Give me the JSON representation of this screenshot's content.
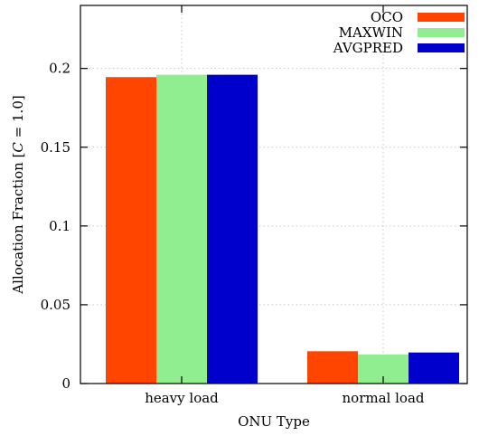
{
  "chart_data": {
    "type": "bar",
    "categories": [
      "heavy load",
      "normal load"
    ],
    "series": [
      {
        "name": "OCO",
        "color": "#ff4500",
        "values": [
          0.1945,
          0.0205
        ]
      },
      {
        "name": "MAXWIN",
        "color": "#90ee90",
        "values": [
          0.196,
          0.0185
        ]
      },
      {
        "name": "AVGPRED",
        "color": "#0000cd",
        "values": [
          0.196,
          0.0197
        ]
      }
    ],
    "xlabel": "ONU Type",
    "ylabel": "Allocation Fraction [C = 1.0]",
    "ylabel_parts": {
      "prefix": "Allocation Fraction [",
      "var": "C",
      "suffix": " = 1.0]"
    },
    "ylim": [
      0,
      0.24
    ],
    "yticks": [
      0,
      0.05,
      0.1,
      0.15,
      0.2
    ],
    "ytick_labels": [
      "0",
      "0.05",
      "0.1",
      "0.15",
      "0.2"
    ],
    "grid": true,
    "legend_position": "top-right"
  }
}
